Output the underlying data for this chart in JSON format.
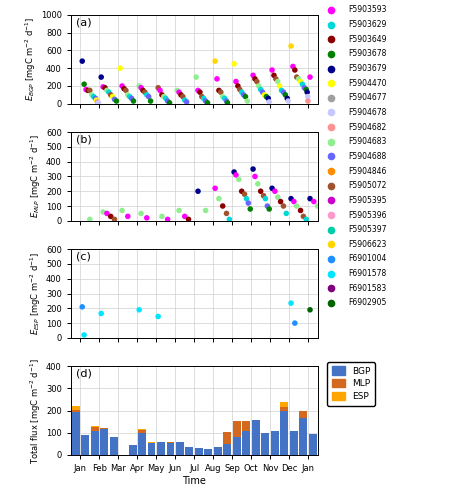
{
  "float_ids": [
    "F5903593",
    "F5903629",
    "F5903649",
    "F5903678",
    "F5903679",
    "F5904470",
    "F5904677",
    "F5904678",
    "F5904682",
    "F5904683",
    "F5904688",
    "F5904846",
    "F5905072",
    "F5905395",
    "F5905396",
    "F5905397",
    "F5906623",
    "F6901004",
    "F6901578",
    "F6901583",
    "F6902905"
  ],
  "float_colors": [
    "#ff00ff",
    "#00d8d8",
    "#8b0000",
    "#008000",
    "#00008b",
    "#ffff00",
    "#a0a0a0",
    "#c8c8ff",
    "#ff9090",
    "#90ee90",
    "#6666ff",
    "#ff8c00",
    "#a0522d",
    "#cc00cc",
    "#ff99cc",
    "#00ccaa",
    "#ffd700",
    "#1e90ff",
    "#00e5ff",
    "#800080",
    "#006400"
  ],
  "bgp_data": {
    "months": [
      1.1,
      1.2,
      1.3,
      1.4,
      1.5,
      1.6,
      1.7,
      1.8,
      1.85,
      1.9,
      1.95,
      2.1,
      2.2,
      2.3,
      2.4,
      2.5,
      2.6,
      2.7,
      2.8,
      2.9,
      3.1,
      3.2,
      3.3,
      3.4,
      3.5,
      3.6,
      3.7,
      3.8,
      4.1,
      4.2,
      4.3,
      4.4,
      4.5,
      4.6,
      4.7,
      5.1,
      5.2,
      5.3,
      5.4,
      5.5,
      5.6,
      5.7,
      6.1,
      6.2,
      6.3,
      6.4,
      6.5,
      6.6,
      7.1,
      7.2,
      7.3,
      7.4,
      7.5,
      7.6,
      7.7,
      8.1,
      8.2,
      8.3,
      8.4,
      8.5,
      8.6,
      8.7,
      8.75,
      9.1,
      9.2,
      9.3,
      9.4,
      9.5,
      9.6,
      9.7,
      9.8,
      10.1,
      10.2,
      10.3,
      10.4,
      10.5,
      10.6,
      10.7,
      10.8,
      10.9,
      10.95,
      11.1,
      11.2,
      11.3,
      11.4,
      11.5,
      11.6,
      11.7,
      11.8,
      11.9,
      11.95,
      12.1,
      12.2,
      12.3,
      12.4,
      12.5,
      12.6,
      12.7,
      12.8,
      12.9,
      12.95,
      12.98,
      12.99,
      13.1
    ],
    "values": [
      480,
      220,
      160,
      150,
      150,
      100,
      80,
      60,
      40,
      20,
      10,
      300,
      190,
      180,
      150,
      130,
      100,
      80,
      50,
      30,
      400,
      200,
      170,
      150,
      100,
      80,
      60,
      30,
      200,
      180,
      150,
      130,
      100,
      80,
      30,
      180,
      150,
      100,
      80,
      60,
      30,
      10,
      150,
      130,
      100,
      80,
      40,
      20,
      300,
      150,
      130,
      80,
      60,
      30,
      10,
      480,
      280,
      150,
      130,
      80,
      60,
      30,
      10,
      450,
      250,
      200,
      160,
      130,
      100,
      80,
      30,
      320,
      280,
      250,
      200,
      160,
      130,
      100,
      80,
      60,
      20,
      380,
      320,
      280,
      250,
      200,
      150,
      130,
      100,
      60,
      30,
      650,
      420,
      380,
      300,
      280,
      250,
      220,
      180,
      160,
      130,
      80,
      30,
      300
    ],
    "floats": [
      4,
      3,
      0,
      2,
      12,
      9,
      1,
      10,
      5,
      8,
      7,
      4,
      0,
      2,
      9,
      1,
      12,
      5,
      10,
      3,
      5,
      0,
      2,
      12,
      9,
      1,
      10,
      3,
      9,
      0,
      2,
      12,
      1,
      10,
      3,
      12,
      0,
      2,
      9,
      1,
      10,
      3,
      9,
      0,
      2,
      12,
      1,
      10,
      9,
      0,
      2,
      12,
      1,
      10,
      3,
      16,
      0,
      2,
      12,
      9,
      1,
      10,
      3,
      5,
      0,
      2,
      12,
      1,
      10,
      3,
      9,
      0,
      2,
      12,
      9,
      1,
      10,
      5,
      3,
      4,
      7,
      0,
      2,
      12,
      9,
      5,
      1,
      10,
      3,
      4,
      7,
      16,
      0,
      2,
      12,
      9,
      5,
      1,
      10,
      3,
      4,
      7,
      8,
      0
    ]
  },
  "mlp_data": {
    "months": [
      1.5,
      2.2,
      2.4,
      2.6,
      2.8,
      3.2,
      3.5,
      4.2,
      4.5,
      5.3,
      5.6,
      6.2,
      6.5,
      6.7,
      7.2,
      7.6,
      8.1,
      8.3,
      8.5,
      8.7,
      8.85,
      9.1,
      9.2,
      9.35,
      9.5,
      9.65,
      9.75,
      9.85,
      9.95,
      10.1,
      10.2,
      10.35,
      10.5,
      10.65,
      10.75,
      10.85,
      10.95,
      11.1,
      11.25,
      11.4,
      11.55,
      11.7,
      11.85,
      12.1,
      12.25,
      12.4,
      12.6,
      12.75,
      12.9,
      13.1,
      13.3,
      13.5,
      13.7
    ],
    "values": [
      10,
      60,
      50,
      30,
      10,
      70,
      30,
      50,
      20,
      30,
      10,
      70,
      30,
      10,
      200,
      70,
      220,
      150,
      100,
      50,
      10,
      330,
      310,
      280,
      200,
      180,
      150,
      120,
      80,
      350,
      300,
      250,
      200,
      170,
      150,
      100,
      80,
      220,
      200,
      160,
      130,
      100,
      50,
      150,
      130,
      100,
      70,
      30,
      10,
      150,
      130,
      100,
      20
    ],
    "floats": [
      9,
      9,
      0,
      2,
      12,
      9,
      0,
      9,
      0,
      9,
      0,
      9,
      0,
      2,
      4,
      9,
      0,
      9,
      2,
      12,
      1,
      4,
      0,
      9,
      2,
      12,
      1,
      10,
      3,
      4,
      0,
      9,
      2,
      12,
      1,
      10,
      3,
      4,
      0,
      9,
      2,
      12,
      1,
      4,
      0,
      9,
      2,
      12,
      1,
      4,
      0,
      9,
      2
    ]
  },
  "esp_data": {
    "months": [
      1.1,
      1.2,
      2.1,
      4.1,
      5.1,
      12.1,
      12.3,
      13.1
    ],
    "values": [
      210,
      20,
      165,
      190,
      145,
      235,
      100,
      190
    ],
    "floats": [
      17,
      18,
      18,
      18,
      18,
      18,
      17,
      20
    ]
  },
  "bar_positions": [
    0.75,
    1.25,
    1.75,
    2.25,
    2.75,
    3.75,
    4.25,
    4.75,
    5.25,
    5.75,
    6.25,
    6.75,
    7.25,
    7.75,
    8.25,
    8.75,
    9.25,
    9.75,
    10.25,
    10.75,
    11.25,
    11.75,
    12.25,
    12.75,
    13.25
  ],
  "bar_bgp": [
    195,
    90,
    110,
    115,
    80,
    45,
    100,
    55,
    60,
    55,
    60,
    35,
    30,
    25,
    35,
    50,
    80,
    110,
    160,
    100,
    110,
    200,
    110,
    165,
    95
  ],
  "bar_mlp": [
    10,
    0,
    15,
    5,
    0,
    0,
    12,
    0,
    0,
    5,
    0,
    0,
    0,
    0,
    0,
    55,
    75,
    45,
    0,
    0,
    0,
    15,
    0,
    35,
    0
  ],
  "bar_esp": [
    18,
    0,
    8,
    0,
    0,
    0,
    5,
    4,
    0,
    0,
    0,
    0,
    0,
    0,
    0,
    0,
    0,
    0,
    0,
    0,
    0,
    23,
    0,
    0,
    0
  ],
  "month_labels": [
    "Jan",
    "Feb",
    "Mar",
    "Apr",
    "May",
    "Jun",
    "Jul",
    "Aug",
    "Sep",
    "Oct",
    "Nov",
    "Dec",
    "Jan"
  ],
  "month_positions": [
    1,
    2,
    3,
    4,
    5,
    6,
    7,
    8,
    9,
    10,
    11,
    12,
    13
  ],
  "bgp_color": "#4472c4",
  "mlp_color": "#d2691e",
  "esp_color": "#ffa500",
  "panel_labels": [
    "(a)",
    "(b)",
    "(c)",
    "(d)"
  ]
}
